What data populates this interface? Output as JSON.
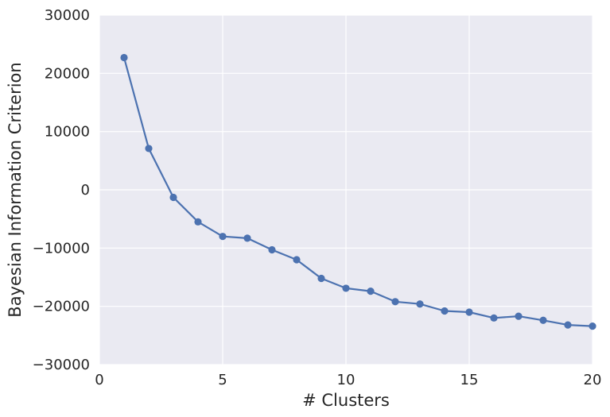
{
  "chart_data": {
    "type": "line",
    "title": "",
    "xlabel": "# Clusters",
    "ylabel": "Bayesian Information Criterion",
    "xlim": [
      0,
      20
    ],
    "ylim": [
      -30000,
      30000
    ],
    "xticks": [
      0,
      5,
      10,
      15,
      20
    ],
    "yticks": [
      -30000,
      -20000,
      -10000,
      0,
      10000,
      20000,
      30000
    ],
    "xtick_labels": [
      "0",
      "5",
      "10",
      "15",
      "20"
    ],
    "ytick_labels": [
      "−30000",
      "−20000",
      "−10000",
      "0",
      "10000",
      "20000",
      "30000"
    ],
    "grid": true,
    "background": "#eaeaf2",
    "grid_color": "#ffffff",
    "series": [
      {
        "color": "#4c72b0",
        "x": [
          1,
          2,
          3,
          4,
          5,
          6,
          7,
          8,
          9,
          10,
          11,
          12,
          13,
          14,
          15,
          16,
          17,
          18,
          19,
          20
        ],
        "values": [
          22700,
          7100,
          -1300,
          -5500,
          -8000,
          -8300,
          -10300,
          -12000,
          -15200,
          -16900,
          -17400,
          -19200,
          -19600,
          -20800,
          -21000,
          -22000,
          -21700,
          -22400,
          -23200,
          -23400
        ]
      }
    ]
  }
}
